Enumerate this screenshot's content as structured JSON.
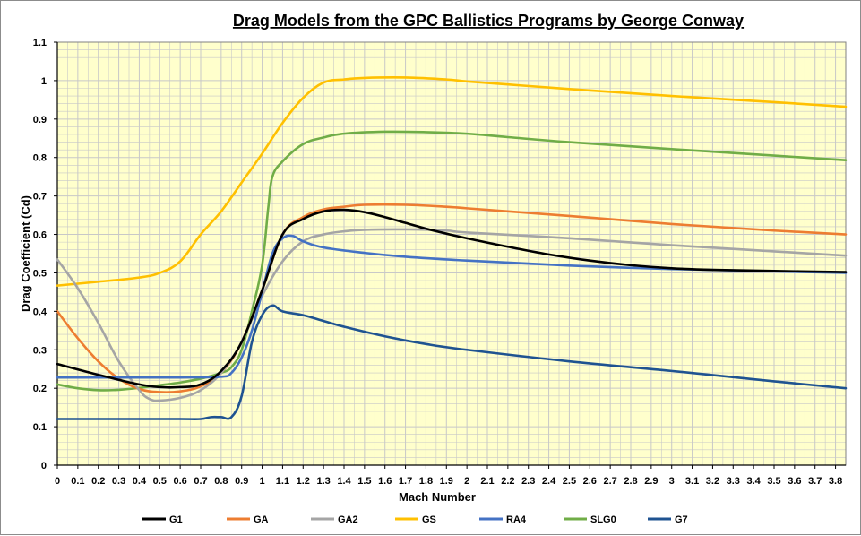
{
  "chart_data": {
    "type": "line",
    "title": "Drag Models from the GPC Ballistics Programs by George Conway",
    "xlabel": "Mach Number",
    "ylabel": "Drag Coefficient (Cd)",
    "xlim": [
      0,
      3.85
    ],
    "ylim": [
      0,
      1.1
    ],
    "x_ticks": [
      "0",
      "0.1",
      "0.2",
      "0.3",
      "0.4",
      "0.5",
      "0.6",
      "0.7",
      "0.8",
      "0.9",
      "1",
      "1.1",
      "1.2",
      "1.3",
      "1.4",
      "1.5",
      "1.6",
      "1.7",
      "1.8",
      "1.9",
      "2",
      "2.1",
      "2.2",
      "2.3",
      "2.4",
      "2.5",
      "2.6",
      "2.7",
      "2.8",
      "2.9",
      "3",
      "3.1",
      "3.2",
      "3.3",
      "3.4",
      "3.5",
      "3.6",
      "3.7",
      "3.8"
    ],
    "y_ticks": [
      "0",
      "0.1",
      "0.2",
      "0.3",
      "0.4",
      "0.5",
      "0.6",
      "0.7",
      "0.8",
      "0.9",
      "1",
      "1.1"
    ],
    "grid": true,
    "background_color": "#ffffcc",
    "grid_color": "#c8c8c8",
    "legend_position": "bottom",
    "series": [
      {
        "name": "G1",
        "color": "#000000",
        "points": [
          [
            0,
            0.263
          ],
          [
            0.2,
            0.235
          ],
          [
            0.4,
            0.21
          ],
          [
            0.5,
            0.203
          ],
          [
            0.6,
            0.203
          ],
          [
            0.7,
            0.21
          ],
          [
            0.8,
            0.245
          ],
          [
            0.9,
            0.32
          ],
          [
            1.0,
            0.455
          ],
          [
            1.1,
            0.6
          ],
          [
            1.2,
            0.64
          ],
          [
            1.3,
            0.66
          ],
          [
            1.4,
            0.664
          ],
          [
            1.5,
            0.658
          ],
          [
            1.6,
            0.645
          ],
          [
            1.7,
            0.63
          ],
          [
            1.8,
            0.615
          ],
          [
            1.9,
            0.602
          ],
          [
            2.0,
            0.59
          ],
          [
            2.2,
            0.568
          ],
          [
            2.4,
            0.548
          ],
          [
            2.6,
            0.532
          ],
          [
            2.8,
            0.52
          ],
          [
            3.0,
            0.512
          ],
          [
            3.2,
            0.508
          ],
          [
            3.5,
            0.505
          ],
          [
            3.85,
            0.502
          ]
        ]
      },
      {
        "name": "GA",
        "color": "#ed7d31",
        "points": [
          [
            0,
            0.4
          ],
          [
            0.1,
            0.33
          ],
          [
            0.2,
            0.27
          ],
          [
            0.3,
            0.225
          ],
          [
            0.4,
            0.198
          ],
          [
            0.5,
            0.19
          ],
          [
            0.6,
            0.192
          ],
          [
            0.7,
            0.205
          ],
          [
            0.8,
            0.24
          ],
          [
            0.9,
            0.32
          ],
          [
            1.0,
            0.455
          ],
          [
            1.1,
            0.6
          ],
          [
            1.2,
            0.645
          ],
          [
            1.3,
            0.665
          ],
          [
            1.4,
            0.672
          ],
          [
            1.5,
            0.677
          ],
          [
            1.7,
            0.677
          ],
          [
            1.9,
            0.672
          ],
          [
            2.0,
            0.668
          ],
          [
            2.2,
            0.66
          ],
          [
            2.5,
            0.648
          ],
          [
            3.0,
            0.627
          ],
          [
            3.5,
            0.61
          ],
          [
            3.85,
            0.6
          ]
        ]
      },
      {
        "name": "GA2",
        "color": "#a5a5a5",
        "points": [
          [
            0,
            0.535
          ],
          [
            0.1,
            0.46
          ],
          [
            0.2,
            0.37
          ],
          [
            0.3,
            0.27
          ],
          [
            0.4,
            0.195
          ],
          [
            0.45,
            0.172
          ],
          [
            0.5,
            0.168
          ],
          [
            0.6,
            0.175
          ],
          [
            0.7,
            0.195
          ],
          [
            0.8,
            0.24
          ],
          [
            0.9,
            0.32
          ],
          [
            1.0,
            0.44
          ],
          [
            1.1,
            0.53
          ],
          [
            1.2,
            0.582
          ],
          [
            1.3,
            0.6
          ],
          [
            1.4,
            0.608
          ],
          [
            1.5,
            0.612
          ],
          [
            1.7,
            0.613
          ],
          [
            1.9,
            0.61
          ],
          [
            2.0,
            0.605
          ],
          [
            2.5,
            0.59
          ],
          [
            3.0,
            0.572
          ],
          [
            3.5,
            0.556
          ],
          [
            3.85,
            0.545
          ]
        ]
      },
      {
        "name": "GS",
        "color": "#ffc000",
        "points": [
          [
            0,
            0.467
          ],
          [
            0.2,
            0.477
          ],
          [
            0.4,
            0.488
          ],
          [
            0.5,
            0.5
          ],
          [
            0.6,
            0.53
          ],
          [
            0.7,
            0.6
          ],
          [
            0.8,
            0.66
          ],
          [
            0.9,
            0.735
          ],
          [
            1.0,
            0.81
          ],
          [
            1.1,
            0.89
          ],
          [
            1.2,
            0.955
          ],
          [
            1.3,
            0.995
          ],
          [
            1.4,
            1.003
          ],
          [
            1.5,
            1.007
          ],
          [
            1.7,
            1.008
          ],
          [
            1.9,
            1.003
          ],
          [
            2.0,
            0.998
          ],
          [
            2.2,
            0.99
          ],
          [
            2.5,
            0.978
          ],
          [
            3.0,
            0.96
          ],
          [
            3.5,
            0.944
          ],
          [
            3.85,
            0.932
          ]
        ]
      },
      {
        "name": "RA4",
        "color": "#4472c4",
        "points": [
          [
            0,
            0.228
          ],
          [
            0.2,
            0.228
          ],
          [
            0.4,
            0.228
          ],
          [
            0.6,
            0.228
          ],
          [
            0.8,
            0.23
          ],
          [
            0.85,
            0.24
          ],
          [
            0.9,
            0.28
          ],
          [
            0.95,
            0.35
          ],
          [
            1.0,
            0.45
          ],
          [
            1.05,
            0.55
          ],
          [
            1.1,
            0.59
          ],
          [
            1.15,
            0.596
          ],
          [
            1.2,
            0.582
          ],
          [
            1.3,
            0.566
          ],
          [
            1.5,
            0.552
          ],
          [
            1.7,
            0.542
          ],
          [
            2.0,
            0.532
          ],
          [
            2.5,
            0.519
          ],
          [
            3.0,
            0.51
          ],
          [
            3.5,
            0.504
          ],
          [
            3.85,
            0.5
          ]
        ]
      },
      {
        "name": "SLG0",
        "color": "#70ad47",
        "points": [
          [
            0,
            0.21
          ],
          [
            0.1,
            0.2
          ],
          [
            0.2,
            0.195
          ],
          [
            0.3,
            0.196
          ],
          [
            0.4,
            0.201
          ],
          [
            0.5,
            0.208
          ],
          [
            0.6,
            0.215
          ],
          [
            0.7,
            0.225
          ],
          [
            0.8,
            0.24
          ],
          [
            0.85,
            0.255
          ],
          [
            0.9,
            0.3
          ],
          [
            0.95,
            0.4
          ],
          [
            1.0,
            0.52
          ],
          [
            1.03,
            0.67
          ],
          [
            1.05,
            0.75
          ],
          [
            1.1,
            0.79
          ],
          [
            1.2,
            0.835
          ],
          [
            1.3,
            0.852
          ],
          [
            1.4,
            0.862
          ],
          [
            1.6,
            0.867
          ],
          [
            1.8,
            0.866
          ],
          [
            2.0,
            0.862
          ],
          [
            2.2,
            0.853
          ],
          [
            2.5,
            0.84
          ],
          [
            3.0,
            0.822
          ],
          [
            3.5,
            0.805
          ],
          [
            3.85,
            0.793
          ]
        ]
      },
      {
        "name": "G7",
        "color": "#1f5391",
        "points": [
          [
            0,
            0.12
          ],
          [
            0.2,
            0.12
          ],
          [
            0.4,
            0.12
          ],
          [
            0.6,
            0.12
          ],
          [
            0.7,
            0.12
          ],
          [
            0.75,
            0.125
          ],
          [
            0.8,
            0.125
          ],
          [
            0.85,
            0.125
          ],
          [
            0.9,
            0.18
          ],
          [
            0.95,
            0.32
          ],
          [
            1.0,
            0.39
          ],
          [
            1.05,
            0.415
          ],
          [
            1.1,
            0.4
          ],
          [
            1.2,
            0.39
          ],
          [
            1.3,
            0.375
          ],
          [
            1.4,
            0.36
          ],
          [
            1.6,
            0.335
          ],
          [
            1.8,
            0.315
          ],
          [
            2.0,
            0.3
          ],
          [
            2.5,
            0.27
          ],
          [
            3.0,
            0.245
          ],
          [
            3.5,
            0.218
          ],
          [
            3.85,
            0.2
          ]
        ]
      }
    ]
  }
}
